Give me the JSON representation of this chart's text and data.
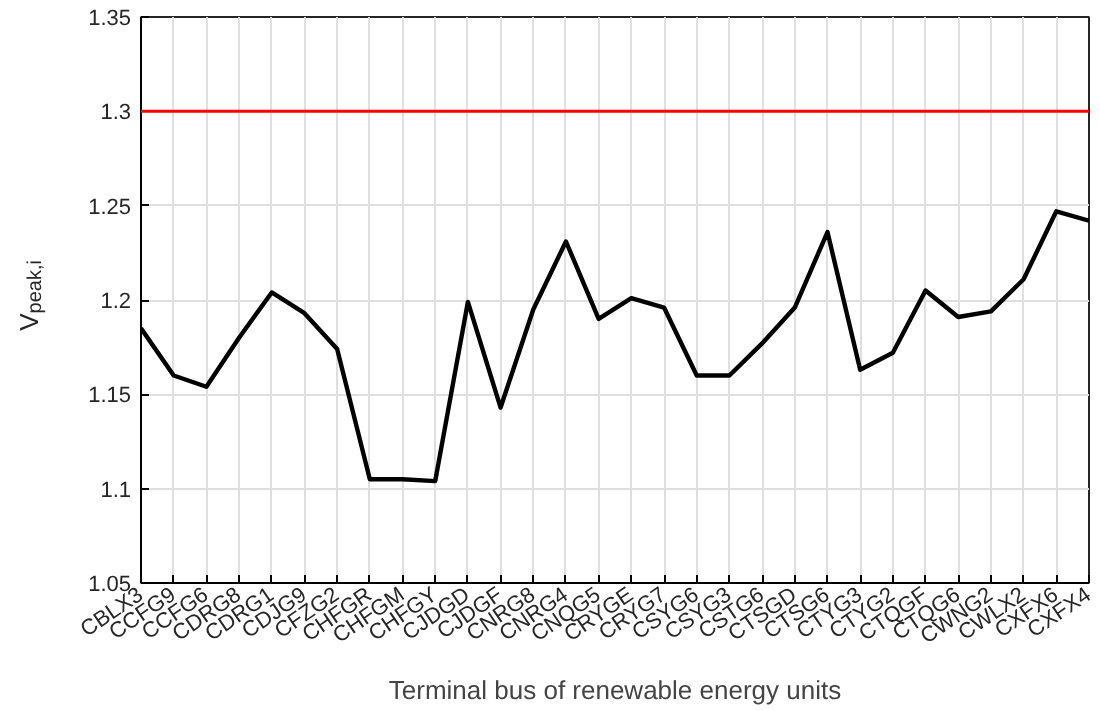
{
  "chart_data": {
    "type": "line",
    "xlabel": "Terminal bus of renewable energy units",
    "ylabel": "V$_{peak,i}$",
    "categories": [
      "CBLX3",
      "CCFG9",
      "CCFG6",
      "CDRG8",
      "CDRG1",
      "CDJG9",
      "CFZG2",
      "CHFGR",
      "CHFGM",
      "CHFGY",
      "CJDGD",
      "CJDGF",
      "CNRG8",
      "CNRG4",
      "CNQG5",
      "CRYGE",
      "CRYG7",
      "CSYG6",
      "CSYG3",
      "CSTG6",
      "CTSGD",
      "CTSG6",
      "CTYG3",
      "CTYG2",
      "CTQGF",
      "CTQG6",
      "CWNG2",
      "CWLX2",
      "CXFX6",
      "CXFX4"
    ],
    "series": [
      {
        "color": "#000000",
        "values": [
          1.185,
          1.16,
          1.154,
          1.18,
          1.204,
          1.193,
          1.174,
          1.105,
          1.105,
          1.104,
          1.199,
          1.143,
          1.195,
          1.231,
          1.19,
          1.201,
          1.196,
          1.16,
          1.16,
          1.177,
          1.196,
          1.236,
          1.163,
          1.172,
          1.205,
          1.191,
          1.194,
          1.211,
          1.247,
          1.242
        ]
      }
    ],
    "ylim": [
      1.05,
      1.35
    ],
    "yticks": [
      1.05,
      1.1,
      1.15,
      1.2,
      1.25,
      1.3,
      1.35
    ],
    "ref_lines": [
      {
        "axis": "y",
        "value": 1.3,
        "color": "#ff0000"
      }
    ],
    "grid": true,
    "line_style": "solid"
  }
}
